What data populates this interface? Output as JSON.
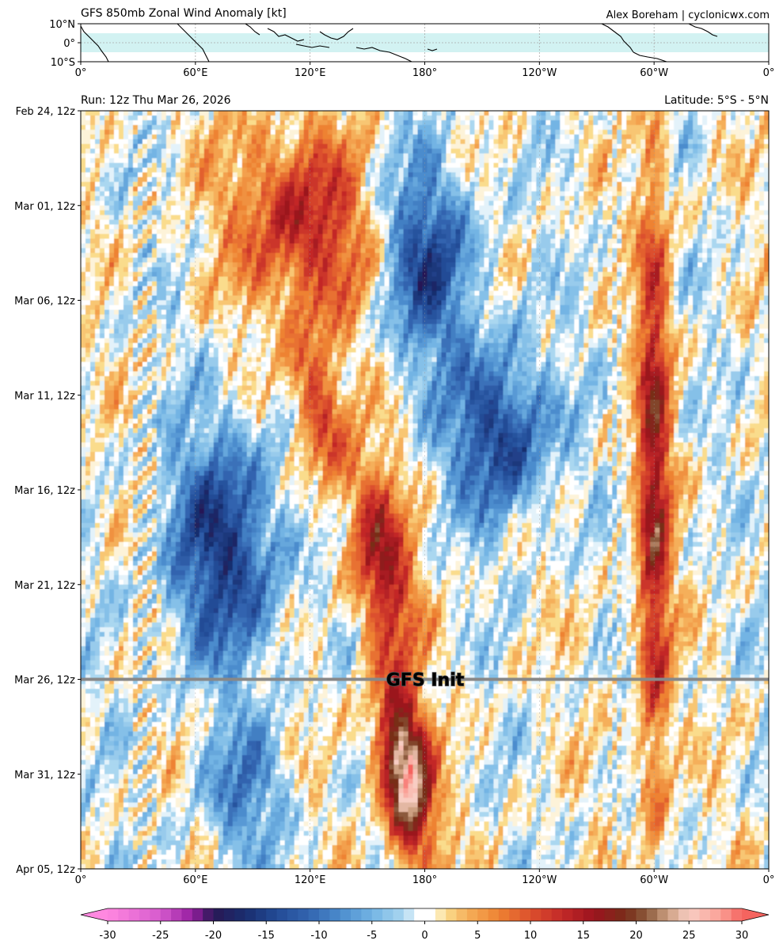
{
  "header": {
    "title": "GFS 850mb Zonal Wind Anomaly [kt]",
    "credit": "Alex Boreham | cyclonicwx.com"
  },
  "main": {
    "run_label": "Run: 12z Thu Mar 26, 2026",
    "latitude_label": "Latitude: 5°S - 5°N",
    "init_label": "GFS Init"
  },
  "chart_data": [
    {
      "type": "map",
      "description_role": "locator",
      "lat_ticks": [
        "10°N",
        "0°",
        "10°S"
      ],
      "lat_range": [
        -10,
        10
      ],
      "highlight_band": [
        -5,
        5
      ],
      "lon_ticks": [
        "0°",
        "60°E",
        "120°E",
        "180°",
        "120°W",
        "60°W",
        "0°"
      ],
      "lon_range": [
        0,
        360
      ]
    },
    {
      "type": "heatmap",
      "x_range": [
        0,
        360
      ],
      "x_ticks": [
        "0°",
        "60°E",
        "120°E",
        "180°",
        "120°W",
        "60°W",
        "0°"
      ],
      "y_ticks": [
        "Feb 24, 12z",
        "Mar 01, 12z",
        "Mar 06, 12z",
        "Mar 11, 12z",
        "Mar 16, 12z",
        "Mar 21, 12z",
        "Mar 26, 12z",
        "Mar 31, 12z",
        "Apr 05, 12z"
      ],
      "init_line": "Mar 26, 12z",
      "features": [
        {
          "kind": "westerly",
          "lon_start": 75,
          "lon_end": 160,
          "day_start": 0,
          "day_end": 12,
          "peak": 14
        },
        {
          "kind": "westerly",
          "lon_start": 110,
          "lon_end": 140,
          "day_start": 11,
          "day_end": 21,
          "peak": 12
        },
        {
          "kind": "westerly",
          "lon_start": 140,
          "lon_end": 175,
          "day_start": 18,
          "day_end": 30,
          "peak": 16
        },
        {
          "kind": "westerly",
          "lon_start": 155,
          "lon_end": 185,
          "day_start": 30,
          "day_end": 40,
          "peak": 28
        },
        {
          "kind": "westerly",
          "lon_start": 290,
          "lon_end": 310,
          "day_start": 0,
          "day_end": 40,
          "peak": 16
        },
        {
          "kind": "easterly",
          "lon_start": 150,
          "lon_end": 210,
          "day_start": 2,
          "day_end": 14,
          "peak": -14
        },
        {
          "kind": "easterly",
          "lon_start": 190,
          "lon_end": 250,
          "day_start": 12,
          "day_end": 22,
          "peak": -15
        },
        {
          "kind": "easterly",
          "lon_start": 40,
          "lon_end": 110,
          "day_start": 16,
          "day_end": 30,
          "peak": -15
        },
        {
          "kind": "easterly",
          "lon_start": 60,
          "lon_end": 110,
          "day_start": 32,
          "day_end": 40,
          "peak": -8
        }
      ]
    },
    {
      "type": "colorbar",
      "ticks": [
        "-30",
        "-25",
        "-20",
        "-15",
        "-10",
        "-5",
        "0",
        "5",
        "10",
        "15",
        "20",
        "25",
        "30"
      ],
      "range": [
        -30,
        30
      ],
      "step": 1,
      "extend": "both"
    }
  ]
}
